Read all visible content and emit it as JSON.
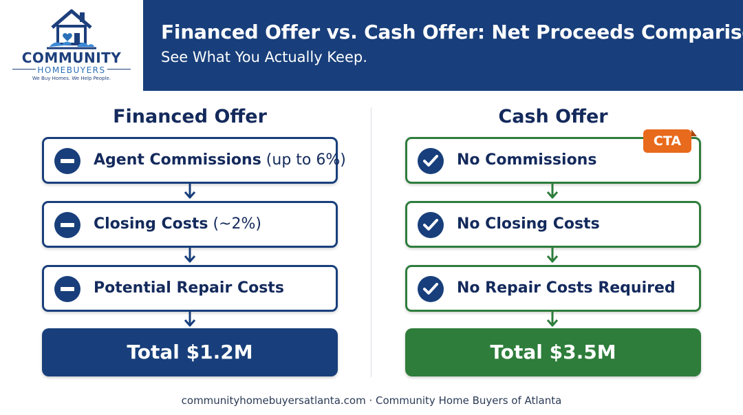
{
  "logo": {
    "name": "COMMUNITY",
    "sub": "HOMEBUYERS",
    "tagline": "We Buy Homes. We Help People."
  },
  "header": {
    "title": "Financed Offer vs. Cash Offer: Net Proceeds Comparison",
    "subtitle": "See What You Actually Keep."
  },
  "financed": {
    "title": "Financed Offer",
    "items": [
      {
        "bold": "Agent Commissions",
        "rest": " (up to 6%)"
      },
      {
        "bold": "Closing Costs",
        "rest": " (~2%)"
      },
      {
        "bold": "Potential Repair Costs",
        "rest": ""
      }
    ],
    "total": "Total $1.2M"
  },
  "cash": {
    "title": "Cash Offer",
    "badge": "CTA",
    "items": [
      {
        "bold": "No Commissions",
        "rest": ""
      },
      {
        "bold": "No Closing Costs",
        "rest": ""
      },
      {
        "bold": "No Repair Costs Required",
        "rest": ""
      }
    ],
    "total": "Total $3.5M"
  },
  "footer": "communityhomebuyersatlanta.com · Community Home Buyers of Atlanta",
  "colors": {
    "navy": "#183f7b",
    "green": "#2e7d3b",
    "orange": "#e86a1c"
  },
  "icons": {
    "financed_item": "minus-circle-icon",
    "cash_item": "check-circle-icon",
    "connector": "arrow-down-icon"
  }
}
